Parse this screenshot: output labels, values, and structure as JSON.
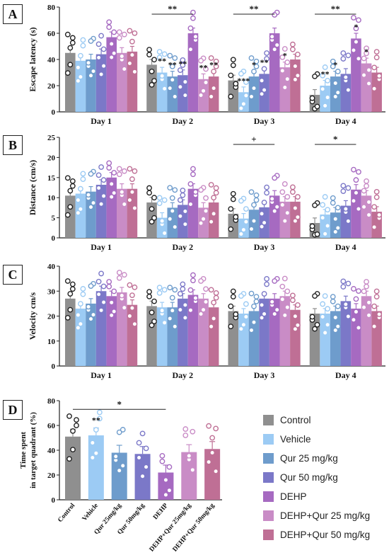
{
  "colors": [
    "#8f8f8f",
    "#9ccbf4",
    "#6e9ccc",
    "#7b78c8",
    "#a66ac1",
    "#c98cc6",
    "#bf6f95"
  ],
  "legend": {
    "title": "",
    "items": [
      "Control",
      "Vehicle",
      "Qur 25 mg/kg",
      "Qur 50 mg/kg",
      "DEHP",
      "DEHP+Qur 25 mg/kg",
      "DEHP+Qur 50 mg/kg"
    ]
  },
  "chart_data": [
    {
      "panel": "A",
      "type": "bar",
      "ylabel": "Escape latency (s)",
      "ylim": [
        0,
        80
      ],
      "yticks": [
        0,
        20,
        40,
        60,
        80
      ],
      "categories": [
        "Day 1",
        "Day 2",
        "Day 3",
        "Day 4"
      ],
      "series": [
        {
          "name": "Control",
          "values": [
            45,
            36,
            24,
            13
          ]
        },
        {
          "name": "Vehicle",
          "values": [
            39,
            30,
            15,
            20
          ]
        },
        {
          "name": "Qur 25 mg/kg",
          "values": [
            40,
            27,
            27,
            27
          ]
        },
        {
          "name": "Qur 50 mg/kg",
          "values": [
            44,
            28,
            29,
            29
          ]
        },
        {
          "name": "DEHP",
          "values": [
            57,
            60,
            60,
            56
          ]
        },
        {
          "name": "DEHP+Qur 25 mg/kg",
          "values": [
            45,
            25,
            34,
            37
          ]
        },
        {
          "name": "DEHP+Qur 50 mg/kg",
          "values": [
            46,
            27,
            40,
            30
          ]
        }
      ],
      "brackets": [
        {
          "from_category": 1,
          "text": "**"
        },
        {
          "from_category": 2,
          "text": "**"
        },
        {
          "from_category": 3,
          "text": "**"
        }
      ],
      "annotations": [
        {
          "category": 1,
          "series": 1,
          "text": "**"
        },
        {
          "category": 1,
          "series": 2,
          "text": "**"
        },
        {
          "category": 1,
          "series": 3,
          "text": "**"
        },
        {
          "category": 1,
          "series": 5,
          "text": "**"
        },
        {
          "category": 1,
          "series": 6,
          "text": "**"
        },
        {
          "category": 2,
          "series": 1,
          "text": "***"
        },
        {
          "category": 2,
          "series": 2,
          "text": "*"
        },
        {
          "category": 2,
          "series": 3,
          "text": "**"
        },
        {
          "category": 2,
          "series": 5,
          "text": "*"
        },
        {
          "category": 3,
          "series": 1,
          "text": "**"
        },
        {
          "category": 3,
          "series": 2,
          "text": "*"
        },
        {
          "category": 3,
          "series": 4,
          "text": "*"
        },
        {
          "category": 3,
          "series": 5,
          "text": "*"
        }
      ]
    },
    {
      "panel": "B",
      "type": "bar",
      "ylabel": "Distance (cm/s)",
      "ylim": [
        0,
        25
      ],
      "yticks": [
        0,
        5,
        10,
        15,
        20,
        25
      ],
      "categories": [
        "Day 1",
        "Day 2",
        "Day 3",
        "Day 4"
      ],
      "series": [
        {
          "name": "Control",
          "values": [
            10.5,
            8.8,
            6.0,
            3.7
          ]
        },
        {
          "name": "Vehicle",
          "values": [
            11.0,
            5.0,
            4.8,
            5.8
          ]
        },
        {
          "name": "Qur 25 mg/kg",
          "values": [
            11.5,
            7.5,
            7.0,
            6.3
          ]
        },
        {
          "name": "Qur 50 mg/kg",
          "values": [
            13.2,
            8.2,
            7.6,
            8.0
          ]
        },
        {
          "name": "DEHP",
          "values": [
            15.0,
            12.2,
            10.5,
            12.0
          ]
        },
        {
          "name": "DEHP+Qur 25 mg/kg",
          "values": [
            12.2,
            7.5,
            9.0,
            10.5
          ]
        },
        {
          "name": "DEHP+Qur 50 mg/kg",
          "values": [
            12.2,
            8.8,
            9.0,
            6.5
          ]
        }
      ],
      "brackets": [
        {
          "from_category": 2,
          "text": "+"
        },
        {
          "from_category": 3,
          "text": "*"
        }
      ],
      "annotations": []
    },
    {
      "panel": "C",
      "type": "bar",
      "ylabel": "Velocity cm/s",
      "ylim": [
        0,
        40
      ],
      "yticks": [
        0,
        10,
        20,
        30,
        40
      ],
      "categories": [
        "Day 1",
        "Day 2",
        "Day 3",
        "Day 4"
      ],
      "series": [
        {
          "name": "Control",
          "values": [
            27,
            24,
            22,
            21
          ]
        },
        {
          "name": "Vehicle",
          "values": [
            23,
            23.5,
            21,
            21
          ]
        },
        {
          "name": "Qur 25 mg/kg",
          "values": [
            25,
            23.5,
            22,
            22
          ]
        },
        {
          "name": "Qur 50 mg/kg",
          "values": [
            30,
            27,
            27,
            26
          ]
        },
        {
          "name": "DEHP",
          "values": [
            28,
            28.5,
            27,
            23
          ]
        },
        {
          "name": "DEHP+Qur 25 mg/kg",
          "values": [
            29.5,
            27,
            28,
            28
          ]
        },
        {
          "name": "DEHP+Qur 50 mg/kg",
          "values": [
            24.5,
            23.5,
            22.5,
            22
          ]
        }
      ],
      "brackets": [],
      "annotations": []
    },
    {
      "panel": "D",
      "type": "bar",
      "ylabel_lines": [
        "Time spent",
        "in target quadrant  (%)"
      ],
      "ylim": [
        0,
        80
      ],
      "yticks": [
        0,
        20,
        40,
        60,
        80
      ],
      "categories": [
        "Control",
        "Vehicle",
        "Qur 25mg/kg",
        "Qur 50mg/kg",
        "DEHP",
        "DEHP+Qur 25mg/kg",
        "DEHP+Qur 50mg/kg"
      ],
      "values": [
        51,
        52,
        38,
        37,
        22,
        38.5,
        41
      ],
      "brackets": [
        {
          "from_category": 0,
          "to_category": 4,
          "text": "*"
        }
      ],
      "annotations": [
        {
          "category": 1,
          "text": "**"
        }
      ]
    }
  ]
}
